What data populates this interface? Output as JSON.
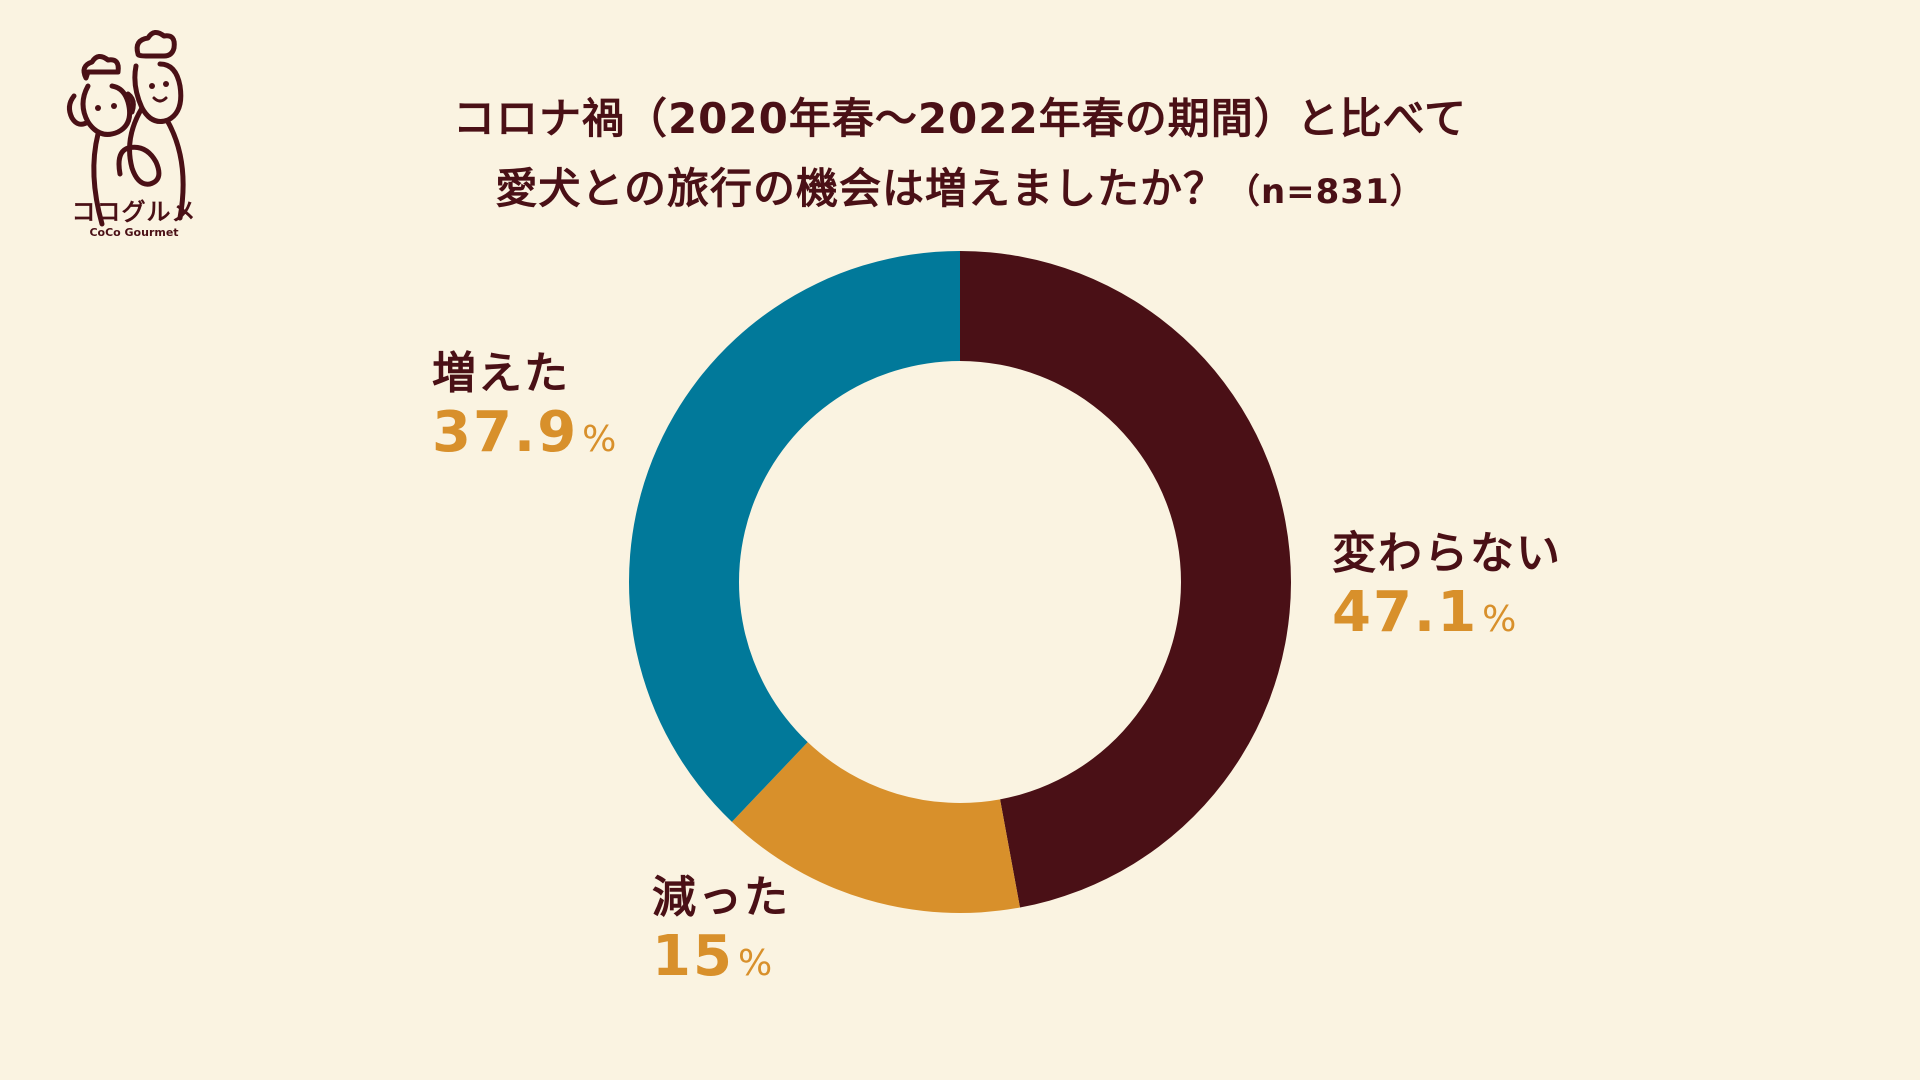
{
  "logo": {
    "name_jp": "ココグルメ",
    "name_en": "CoCo Gourmet"
  },
  "title": {
    "line1": "コロナ禍（2020年春〜2022年春の期間）と比べて",
    "line2": "愛犬との旅行の機会は増えましたか？",
    "n_note": "（n=831）"
  },
  "colors": {
    "background": "#faf3e1",
    "unchanged": "#4a1016",
    "decreased": "#d8902b",
    "increased": "#01799a",
    "value_text": "#d8902b",
    "label_text": "#4a1016"
  },
  "chart_data": {
    "type": "pie",
    "donut": true,
    "start": "top, clockwise",
    "slices": [
      {
        "label": "変わらない",
        "value": 47.1,
        "display": "47.1",
        "unit": "%",
        "color": "#4a1016"
      },
      {
        "label": "減った",
        "value": 15,
        "display": "15",
        "unit": "%",
        "color": "#d8902b"
      },
      {
        "label": "増えた",
        "value": 37.9,
        "display": "37.9",
        "unit": "%",
        "color": "#01799a"
      }
    ]
  }
}
